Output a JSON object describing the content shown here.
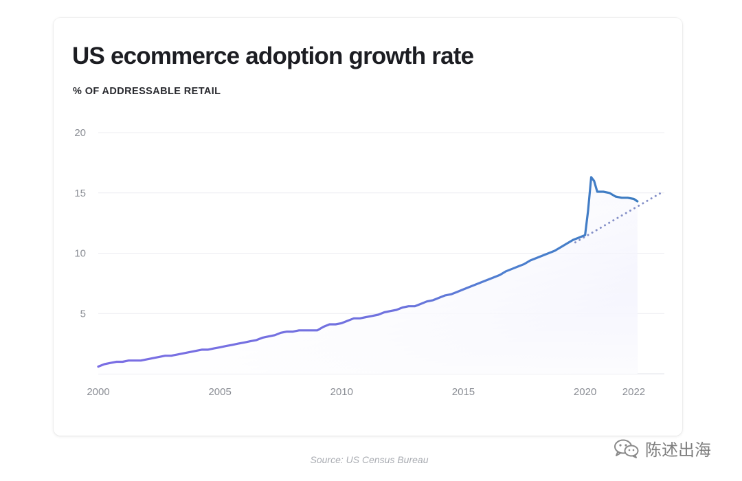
{
  "card": {
    "title": "US ecommerce adoption growth rate",
    "subtitle": "% OF ADDRESSABLE RETAIL"
  },
  "source": "Source: US Census Bureau",
  "watermark": {
    "text": "陈述出海",
    "icon": "wechat-icon"
  },
  "chart_data": {
    "type": "line",
    "title": "US ecommerce adoption growth rate",
    "ylabel": "% OF ADDRESSABLE RETAIL",
    "xlabel": "",
    "xlim": [
      2000,
      2023.2
    ],
    "ylim": [
      0,
      20
    ],
    "x_ticks": [
      2000,
      2005,
      2010,
      2015,
      2020,
      2022
    ],
    "y_ticks": [
      5,
      10,
      15,
      20
    ],
    "grid": true,
    "legend": "none",
    "colors": {
      "actual_start": "#7b6ee4",
      "actual_end": "#3b7cc0",
      "trend": "#8590c8",
      "fill": "#e6e6fb",
      "grid": "#ececf1"
    },
    "series": [
      {
        "style": "solid",
        "x": [
          2000.0,
          2000.25,
          2000.5,
          2000.75,
          2001.0,
          2001.25,
          2001.5,
          2001.75,
          2002.0,
          2002.25,
          2002.5,
          2002.75,
          2003.0,
          2003.25,
          2003.5,
          2003.75,
          2004.0,
          2004.25,
          2004.5,
          2004.75,
          2005.0,
          2005.25,
          2005.5,
          2005.75,
          2006.0,
          2006.25,
          2006.5,
          2006.75,
          2007.0,
          2007.25,
          2007.5,
          2007.75,
          2008.0,
          2008.25,
          2008.5,
          2008.75,
          2009.0,
          2009.25,
          2009.5,
          2009.75,
          2010.0,
          2010.25,
          2010.5,
          2010.75,
          2011.0,
          2011.25,
          2011.5,
          2011.75,
          2012.0,
          2012.25,
          2012.5,
          2012.75,
          2013.0,
          2013.25,
          2013.5,
          2013.75,
          2014.0,
          2014.25,
          2014.5,
          2014.75,
          2015.0,
          2015.25,
          2015.5,
          2015.75,
          2016.0,
          2016.25,
          2016.5,
          2016.75,
          2017.0,
          2017.25,
          2017.5,
          2017.75,
          2018.0,
          2018.25,
          2018.5,
          2018.75,
          2019.0,
          2019.25,
          2019.5,
          2019.75,
          2020.0,
          2020.12,
          2020.25,
          2020.37,
          2020.5,
          2020.62,
          2020.75,
          2021.0,
          2021.25,
          2021.5,
          2021.75,
          2022.0,
          2022.15
        ],
        "y": [
          0.6,
          0.8,
          0.9,
          1.0,
          1.0,
          1.1,
          1.1,
          1.1,
          1.2,
          1.3,
          1.4,
          1.5,
          1.5,
          1.6,
          1.7,
          1.8,
          1.9,
          2.0,
          2.0,
          2.1,
          2.2,
          2.3,
          2.4,
          2.5,
          2.6,
          2.7,
          2.8,
          3.0,
          3.1,
          3.2,
          3.4,
          3.5,
          3.5,
          3.6,
          3.6,
          3.6,
          3.6,
          3.9,
          4.1,
          4.1,
          4.2,
          4.4,
          4.6,
          4.6,
          4.7,
          4.8,
          4.9,
          5.1,
          5.2,
          5.3,
          5.5,
          5.6,
          5.6,
          5.8,
          6.0,
          6.1,
          6.3,
          6.5,
          6.6,
          6.8,
          7.0,
          7.2,
          7.4,
          7.6,
          7.8,
          8.0,
          8.2,
          8.5,
          8.7,
          8.9,
          9.1,
          9.4,
          9.6,
          9.8,
          10.0,
          10.2,
          10.5,
          10.8,
          11.1,
          11.3,
          11.5,
          13.5,
          16.3,
          16.0,
          15.1,
          15.1,
          15.1,
          15.0,
          14.7,
          14.6,
          14.6,
          14.5,
          14.3
        ]
      },
      {
        "style": "dotted",
        "x": [
          2019.6,
          2023.2
        ],
        "y": [
          10.9,
          15.1
        ]
      }
    ]
  }
}
